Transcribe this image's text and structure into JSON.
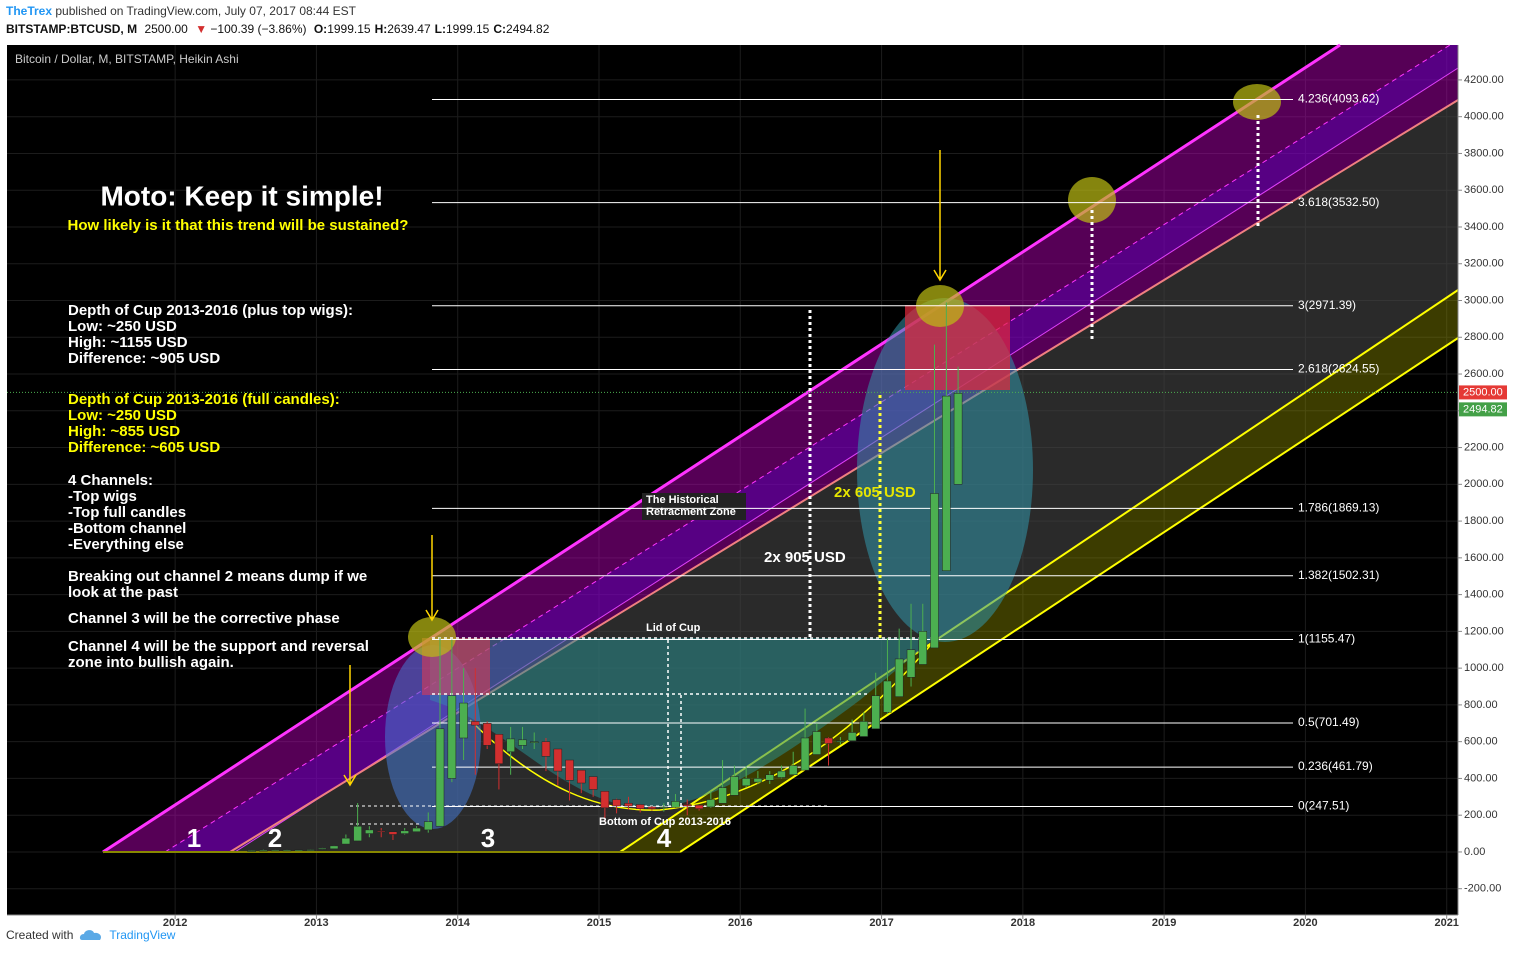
{
  "header": {
    "author": "TheTrex",
    "published": "published on TradingView.com, July 07, 2017 08:44 EST",
    "symbol": "BITSTAMP:BTCUSD, M",
    "last": "2500.00",
    "arrow": "▼",
    "change": "−100.39 (−3.86%)",
    "ohlc": [
      {
        "label": "O:",
        "value": "1999.15"
      },
      {
        "label": "H:",
        "value": "2639.47"
      },
      {
        "label": "L:",
        "value": "1999.15"
      },
      {
        "label": "C:",
        "value": "2494.82"
      }
    ]
  },
  "footer": {
    "created": "Created with",
    "brand": "TradingView"
  },
  "chart_data": {
    "type": "candlestick",
    "title": "Bitcoin / Dollar, M, BITSTAMP, Heikin Ashi",
    "up_color": "#4caf50",
    "down_color": "#d32f2f",
    "x": [
      2012.5,
      2012.583,
      2012.667,
      2012.75,
      2012.833,
      2012.917,
      2013.0,
      2013.083,
      2013.167,
      2013.25,
      2013.333,
      2013.417,
      2013.5,
      2013.583,
      2013.667,
      2013.75,
      2013.833,
      2013.917,
      2014.0,
      2014.083,
      2014.167,
      2014.25,
      2014.333,
      2014.417,
      2014.5,
      2014.583,
      2014.667,
      2014.75,
      2014.833,
      2014.917,
      2015.0,
      2015.083,
      2015.167,
      2015.25,
      2015.333,
      2015.417,
      2015.5,
      2015.583,
      2015.667,
      2015.75,
      2015.833,
      2015.917,
      2016.0,
      2016.083,
      2016.167,
      2016.25,
      2016.333,
      2016.417,
      2016.5,
      2016.583,
      2016.667,
      2016.75,
      2016.833,
      2016.917,
      2017.0,
      2017.083,
      2017.167,
      2017.25,
      2017.333,
      2017.417,
      2017.5
    ],
    "open": [
      7,
      8,
      9,
      10,
      11,
      12,
      14,
      17,
      43,
      60,
      100,
      115,
      110,
      100,
      110,
      120,
      140,
      400,
      620,
      710,
      700,
      640,
      545,
      580,
      595,
      600,
      560,
      500,
      445,
      410,
      330,
      285,
      265,
      258,
      245,
      240,
      243,
      258,
      255,
      245,
      265,
      308,
      360,
      380,
      390,
      405,
      420,
      445,
      530,
      620,
      605,
      605,
      628,
      670,
      760,
      845,
      950,
      1020,
      1110,
      1530,
      2000
    ],
    "high": [
      9,
      13,
      12,
      12,
      13,
      14,
      22,
      35,
      95,
      266,
      140,
      130,
      110,
      130,
      140,
      215,
      1165,
      1155,
      1000,
      1000,
      710,
      640,
      680,
      680,
      650,
      620,
      560,
      500,
      445,
      410,
      330,
      290,
      300,
      260,
      250,
      265,
      315,
      285,
      255,
      330,
      500,
      470,
      465,
      440,
      440,
      470,
      545,
      780,
      700,
      625,
      625,
      720,
      760,
      975,
      1165,
      1215,
      1350,
      1350,
      2760,
      2990,
      2640
    ],
    "low": [
      6,
      7,
      9,
      10,
      10,
      12,
      13,
      17,
      43,
      60,
      80,
      80,
      65,
      95,
      110,
      105,
      140,
      380,
      500,
      420,
      560,
      340,
      420,
      560,
      560,
      440,
      360,
      280,
      320,
      300,
      165,
      210,
      230,
      215,
      225,
      220,
      240,
      200,
      225,
      240,
      265,
      308,
      350,
      370,
      370,
      400,
      420,
      445,
      530,
      470,
      585,
      605,
      628,
      670,
      750,
      845,
      900,
      1020,
      1110,
      1530,
      2000
    ],
    "close": [
      8,
      10,
      11,
      11,
      12,
      13,
      20,
      33,
      75,
      140,
      120,
      110,
      95,
      115,
      130,
      165,
      670,
      850,
      810,
      690,
      580,
      480,
      615,
      610,
      600,
      520,
      440,
      390,
      375,
      340,
      240,
      250,
      250,
      235,
      235,
      245,
      275,
      250,
      235,
      285,
      350,
      410,
      400,
      400,
      420,
      440,
      470,
      620,
      655,
      590,
      605,
      650,
      710,
      850,
      930,
      1050,
      1100,
      1200,
      1950,
      2480,
      2495
    ],
    "xlim": [
      2010.81,
      2021.08
    ],
    "ylim": [
      -343,
      4390
    ],
    "xticks": [
      2012,
      2013,
      2014,
      2015,
      2016,
      2017,
      2018,
      2019,
      2020,
      2021
    ],
    "yticks": [
      {
        "value": -200,
        "label": "-200.00"
      },
      {
        "value": 0,
        "label": "0.00"
      },
      {
        "value": 200,
        "label": "200.00"
      },
      {
        "value": 400,
        "label": "400.00"
      },
      {
        "value": 600,
        "label": "600.00"
      },
      {
        "value": 800,
        "label": "800.00"
      },
      {
        "value": 1000,
        "label": "1000.00"
      },
      {
        "value": 1200,
        "label": "1200.00"
      },
      {
        "value": 1400,
        "label": "1400.00"
      },
      {
        "value": 1600,
        "label": "1600.00"
      },
      {
        "value": 1800,
        "label": "1800.00"
      },
      {
        "value": 2000,
        "label": "2000.00"
      },
      {
        "value": 2200,
        "label": "2200.00"
      },
      {
        "value": 2400,
        "label": "2400.00"
      },
      {
        "value": 2600,
        "label": "2600.00"
      },
      {
        "value": 2800,
        "label": "2800.00"
      },
      {
        "value": 3000,
        "label": "3000.00"
      },
      {
        "value": 3200,
        "label": "3200.00"
      },
      {
        "value": 3400,
        "label": "3400.00"
      },
      {
        "value": 3600,
        "label": "3600.00"
      },
      {
        "value": 3800,
        "label": "3800.00"
      },
      {
        "value": 4000,
        "label": "4000.00"
      },
      {
        "value": 4200,
        "label": "4200.00"
      }
    ],
    "grid": true,
    "fib_levels": [
      {
        "value": 4093.62,
        "label": "4.236(4093.62)"
      },
      {
        "value": 3532.5,
        "label": "3.618(3532.50)"
      },
      {
        "value": 2971.39,
        "label": "3(2971.39)"
      },
      {
        "value": 2624.55,
        "label": "2.618(2624.55)"
      },
      {
        "value": 1869.13,
        "label": "1.786(1869.13)"
      },
      {
        "value": 1502.31,
        "label": "1.382(1502.31)"
      },
      {
        "value": 1155.47,
        "label": "1(1155.47)"
      },
      {
        "value": 701.49,
        "label": "0.5(701.49)"
      },
      {
        "value": 461.79,
        "label": "0.236(461.79)"
      },
      {
        "value": 247.51,
        "label": "0(247.51)"
      }
    ],
    "price_markers": [
      {
        "value": 2500,
        "label": "2500.00",
        "color": "#e53935"
      },
      {
        "value": 2494.82,
        "label": "2494.82",
        "color": "#43a047"
      }
    ],
    "annotations": [
      {
        "lines": [
          "Moto: Keep it simple!"
        ],
        "color": "#ffffff"
      },
      {
        "lines": [
          "How likely is it that this trend will be sustained?"
        ],
        "color": "#ffff00"
      },
      {
        "lines": [
          "Depth of Cup 2013-2016 (plus top wigs):",
          "Low: ~250 USD",
          "High: ~1155 USD",
          "Difference: ~905 USD"
        ],
        "color": "#ffffff"
      },
      {
        "lines": [
          "Depth of Cup 2013-2016 (full candles):",
          "Low: ~250 USD",
          "High: ~855 USD",
          "Difference: ~605 USD"
        ],
        "color": "#ffff00"
      },
      {
        "lines": [
          "4 Channels:",
          "-Top wigs",
          "-Top full candles",
          "-Bottom channel",
          "-Everything else"
        ],
        "color": "#ffffff"
      },
      {
        "lines": [
          "Breaking out channel 2 means dump if we",
          "look at the past"
        ],
        "color": "#ffffff"
      },
      {
        "lines": [
          "Channel 3 will be the corrective phase"
        ],
        "color": "#ffffff"
      },
      {
        "lines": [
          "Channel 4 will be the support and reversal",
          "zone into bullish again."
        ],
        "color": "#ffffff"
      },
      {
        "lines": [
          "The Historical",
          "Retracment Zone"
        ],
        "color": "#ffffff"
      },
      {
        "lines": [
          "2x 905 USD"
        ],
        "color": "#ffffff"
      },
      {
        "lines": [
          "2x 605 USD"
        ],
        "color": "#e6e600"
      },
      {
        "lines": [
          "Lid of Cup"
        ],
        "color": "#ffffff"
      },
      {
        "lines": [
          "Bottom of Cup 2013-2016"
        ],
        "color": "#ffffff"
      },
      {
        "lines": [
          "1",
          "2",
          "3",
          "4"
        ],
        "color": "#ffffff"
      }
    ]
  }
}
